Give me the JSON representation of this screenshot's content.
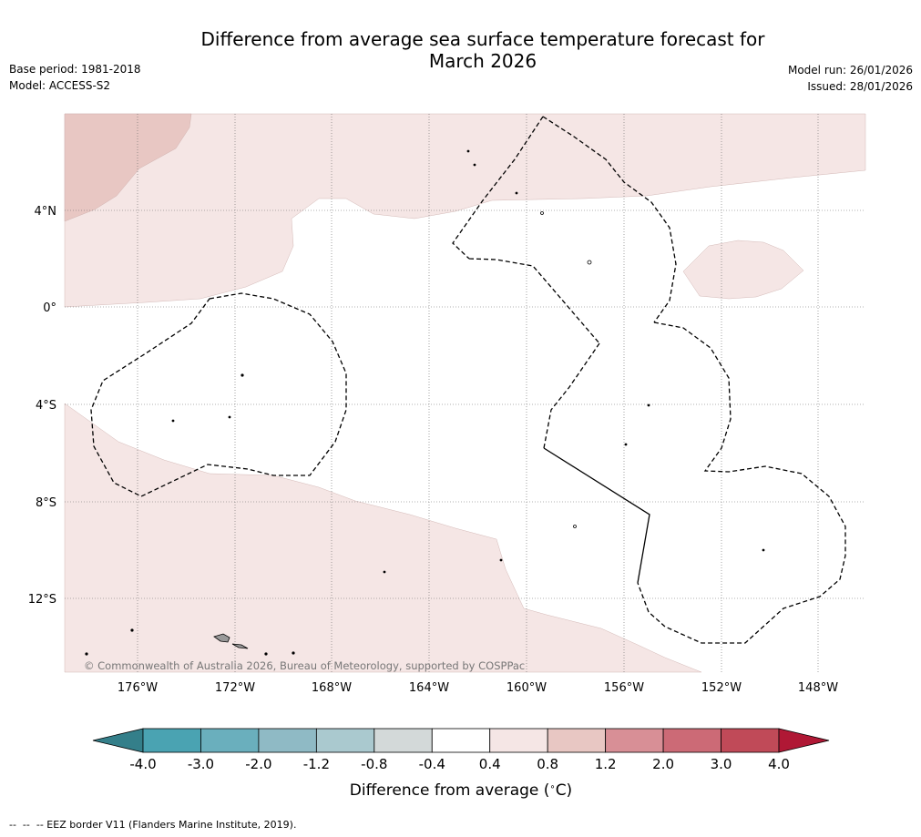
{
  "title": {
    "line1": "Difference from average sea surface temperature forecast for",
    "line2": "March 2026"
  },
  "meta_left": {
    "base_period": "Base period: 1981-2018",
    "model": "Model: ACCESS-S2"
  },
  "meta_right": {
    "model_run": "Model run: 26/01/2026",
    "issued": "Issued: 28/01/2026"
  },
  "map": {
    "lat_labels": [
      "4°N",
      "0°",
      "4°S",
      "8°S",
      "12°S"
    ],
    "lon_labels": [
      "176°W",
      "172°W",
      "168°W",
      "164°W",
      "160°W",
      "156°W",
      "152°W",
      "148°W"
    ],
    "copyright": "© Commonwealth of Australia 2026, Bureau of Meteorology, supported by COSPPac"
  },
  "colorbar": {
    "tick_labels": [
      "-4.0",
      "-3.0",
      "-2.0",
      "-1.2",
      "-0.8",
      "-0.4",
      "0.4",
      "0.8",
      "1.2",
      "2.0",
      "3.0",
      "4.0"
    ],
    "colors": [
      "#4aa3b2",
      "#6aafbd",
      "#8fbac5",
      "#aac9cf",
      "#d3d9d9",
      "#ffffff",
      "#f5e6e5",
      "#e8c7c3",
      "#d88f96",
      "#cc6a76",
      "#c04a58"
    ],
    "under_color": "#347f8a",
    "over_color": "#b01835",
    "label": "Difference from average (°C)"
  },
  "colors": {
    "shade_light": "#f5e6e5",
    "shade_mid": "#e8c7c3"
  },
  "footer": {
    "eez_note": "--  --  -- EEZ border V11 (Flanders Marine Institute, 2019)."
  }
}
